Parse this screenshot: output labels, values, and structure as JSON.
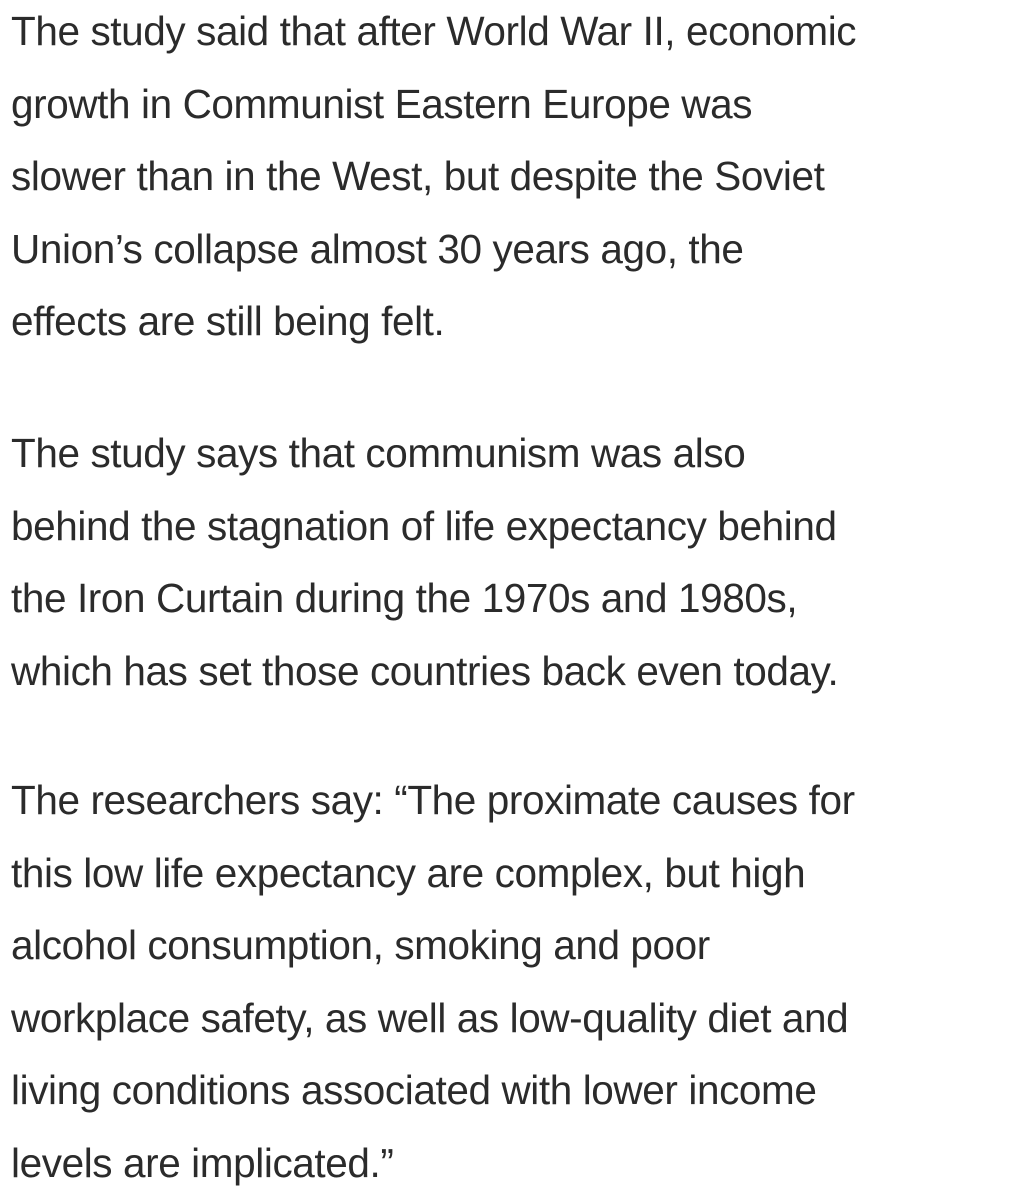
{
  "paragraphs": [
    {
      "lines": [
        "The study said that after World War II, economic",
        "growth in Communist Eastern Europe was",
        "slower than in the West, but despite the Soviet",
        "Union’s collapse almost 30 years ago, the",
        "effects are still being felt."
      ]
    },
    {
      "lines": [
        "The study says that communism was also",
        "behind the stagnation of life expectancy behind",
        "the Iron Curtain during the 1970s and 1980s,",
        "which has set those countries back even today."
      ]
    },
    {
      "lines": [
        "The researchers say: “The proximate causes for",
        "this low life expectancy are complex, but high",
        "alcohol consumption, smoking and poor",
        "workplace safety, as well as low-quality diet and",
        "living conditions associated with lower income",
        "levels are implicated.”"
      ]
    }
  ]
}
